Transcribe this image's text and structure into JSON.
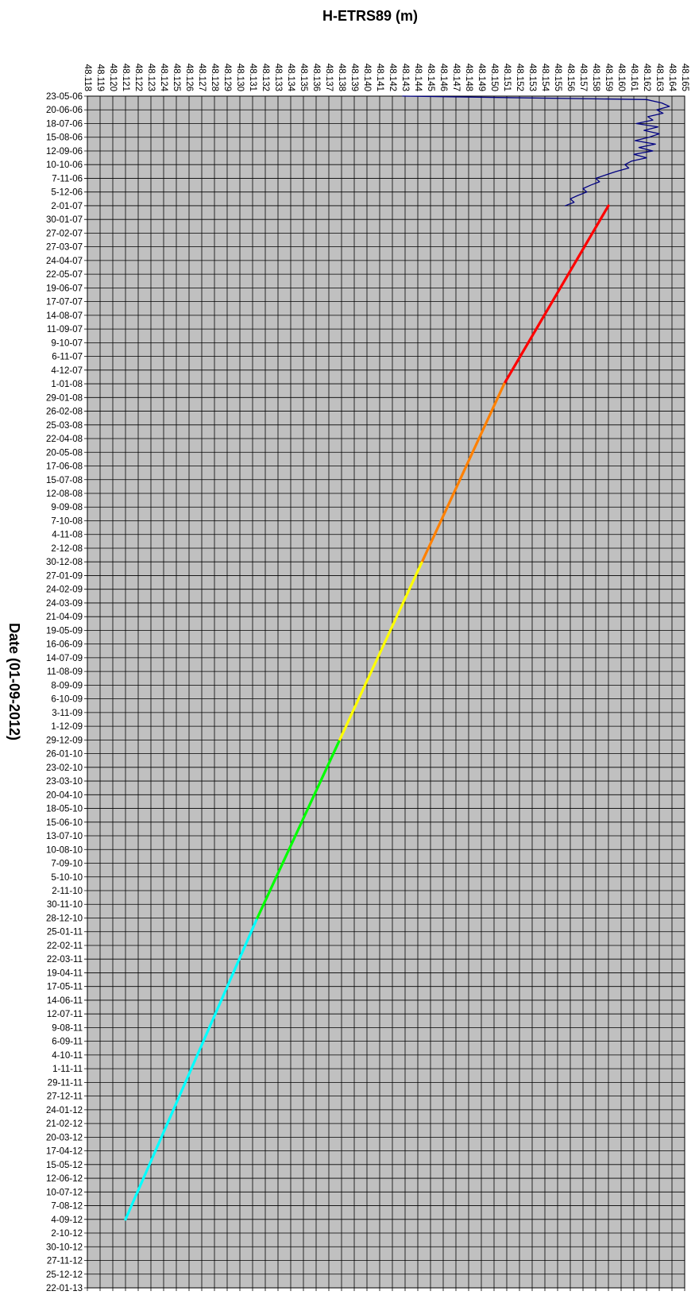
{
  "chart_data": {
    "type": "line",
    "orientation": "time-on-vertical-axis",
    "title": "H-ETRS89 (m)",
    "ylabel": "Date (01-09-2012)",
    "xlabel": "",
    "xlim": [
      48.118,
      48.165
    ],
    "ylim": [
      "23-05-06",
      "22-01-13"
    ],
    "grid": true,
    "x_ticks": [
      "48.118",
      "48.119",
      "48.120",
      "48.121",
      "48.122",
      "48.123",
      "48.124",
      "48.125",
      "48.126",
      "48.127",
      "48.128",
      "48.129",
      "48.130",
      "48.131",
      "48.132",
      "48.133",
      "48.134",
      "48.135",
      "48.136",
      "48.137",
      "48.138",
      "48.139",
      "48.140",
      "48.141",
      "48.142",
      "48.143",
      "48.144",
      "48.145",
      "48.146",
      "48.147",
      "48.148",
      "48.149",
      "48.150",
      "48.151",
      "48.152",
      "48.153",
      "48.154",
      "48.155",
      "48.156",
      "48.157",
      "48.158",
      "48.159",
      "48.160",
      "48.161",
      "48.162",
      "48.163",
      "48.164",
      "48.165"
    ],
    "y_ticks": [
      "23-05-06",
      "20-06-06",
      "18-07-06",
      "15-08-06",
      "12-09-06",
      "10-10-06",
      "7-11-06",
      "5-12-06",
      "2-01-07",
      "30-01-07",
      "27-02-07",
      "27-03-07",
      "24-04-07",
      "22-05-07",
      "19-06-07",
      "17-07-07",
      "14-08-07",
      "11-09-07",
      "9-10-07",
      "6-11-07",
      "4-12-07",
      "1-01-08",
      "29-01-08",
      "26-02-08",
      "25-03-08",
      "22-04-08",
      "20-05-08",
      "17-06-08",
      "15-07-08",
      "12-08-08",
      "9-09-08",
      "7-10-08",
      "4-11-08",
      "2-12-08",
      "30-12-08",
      "27-01-09",
      "24-02-09",
      "24-03-09",
      "21-04-09",
      "19-05-09",
      "16-06-09",
      "14-07-09",
      "11-08-09",
      "8-09-09",
      "6-10-09",
      "3-11-09",
      "1-12-09",
      "29-12-09",
      "26-01-10",
      "23-02-10",
      "23-03-10",
      "20-04-10",
      "18-05-10",
      "15-06-10",
      "13-07-10",
      "10-08-10",
      "7-09-10",
      "5-10-10",
      "2-11-10",
      "30-11-10",
      "28-12-10",
      "25-01-11",
      "22-02-11",
      "22-03-11",
      "19-04-11",
      "17-05-11",
      "14-06-11",
      "12-07-11",
      "9-08-11",
      "6-09-11",
      "4-10-11",
      "1-11-11",
      "29-11-11",
      "27-12-11",
      "24-01-12",
      "21-02-12",
      "20-03-12",
      "17-04-12",
      "15-05-12",
      "12-06-12",
      "10-07-12",
      "7-08-12",
      "4-09-12",
      "2-10-12",
      "30-10-12",
      "27-11-12",
      "25-12-12",
      "22-01-13"
    ],
    "colors": {
      "plot_background": "#c0c0c0",
      "grid": "#000000",
      "raw_series": "#000080",
      "fit_segments": [
        "#ff0000",
        "#ff8000",
        "#ffff00",
        "#00ff00",
        "#00ffff"
      ]
    },
    "series": [
      {
        "role": "raw-observations",
        "color": "#000080",
        "points": [
          [
            "23-05-06",
            48.1428
          ],
          [
            "30-05-06",
            48.162
          ],
          [
            "6-06-06",
            48.1632
          ],
          [
            "13-06-06",
            48.1638
          ],
          [
            "20-06-06",
            48.1628
          ],
          [
            "27-06-06",
            48.1633
          ],
          [
            "4-07-06",
            48.1621
          ],
          [
            "11-07-06",
            48.1625
          ],
          [
            "18-07-06",
            48.1612
          ],
          [
            "25-07-06",
            48.1629
          ],
          [
            "1-08-06",
            48.1618
          ],
          [
            "8-08-06",
            48.163
          ],
          [
            "15-08-06",
            48.1622
          ],
          [
            "22-08-06",
            48.1611
          ],
          [
            "29-08-06",
            48.1627
          ],
          [
            "5-09-06",
            48.1614
          ],
          [
            "12-09-06",
            48.1625
          ],
          [
            "19-09-06",
            48.161
          ],
          [
            "26-09-06",
            48.162
          ],
          [
            "3-10-06",
            48.1608
          ],
          [
            "10-10-06",
            48.1603
          ],
          [
            "17-10-06",
            48.1606
          ],
          [
            "24-10-06",
            48.1596
          ],
          [
            "31-10-06",
            48.1588
          ],
          [
            "7-11-06",
            48.158
          ],
          [
            "14-11-06",
            48.1583
          ],
          [
            "21-11-06",
            48.1576
          ],
          [
            "28-11-06",
            48.157
          ],
          [
            "5-12-06",
            48.1573
          ],
          [
            "12-12-06",
            48.1566
          ],
          [
            "19-12-06",
            48.156
          ],
          [
            "26-12-06",
            48.1563
          ],
          [
            "2-01-07",
            48.1556
          ]
        ]
      },
      {
        "role": "fit-segment-1",
        "color": "#ff0000",
        "points": [
          [
            "2-01-07",
            48.159
          ],
          [
            "1-01-08",
            48.1508
          ]
        ]
      },
      {
        "role": "fit-segment-2",
        "color": "#ff8000",
        "points": [
          [
            "1-01-08",
            48.1508
          ],
          [
            "1-01-09",
            48.1443
          ]
        ]
      },
      {
        "role": "fit-segment-3",
        "color": "#ffff00",
        "points": [
          [
            "1-01-09",
            48.1443
          ],
          [
            "1-01-10",
            48.1378
          ]
        ]
      },
      {
        "role": "fit-segment-4",
        "color": "#00ff00",
        "points": [
          [
            "1-01-10",
            48.1378
          ],
          [
            "1-01-11",
            48.1313
          ]
        ]
      },
      {
        "role": "fit-segment-5",
        "color": "#00ffff",
        "points": [
          [
            "1-01-11",
            48.1313
          ],
          [
            "4-09-12",
            48.121
          ]
        ]
      }
    ]
  }
}
